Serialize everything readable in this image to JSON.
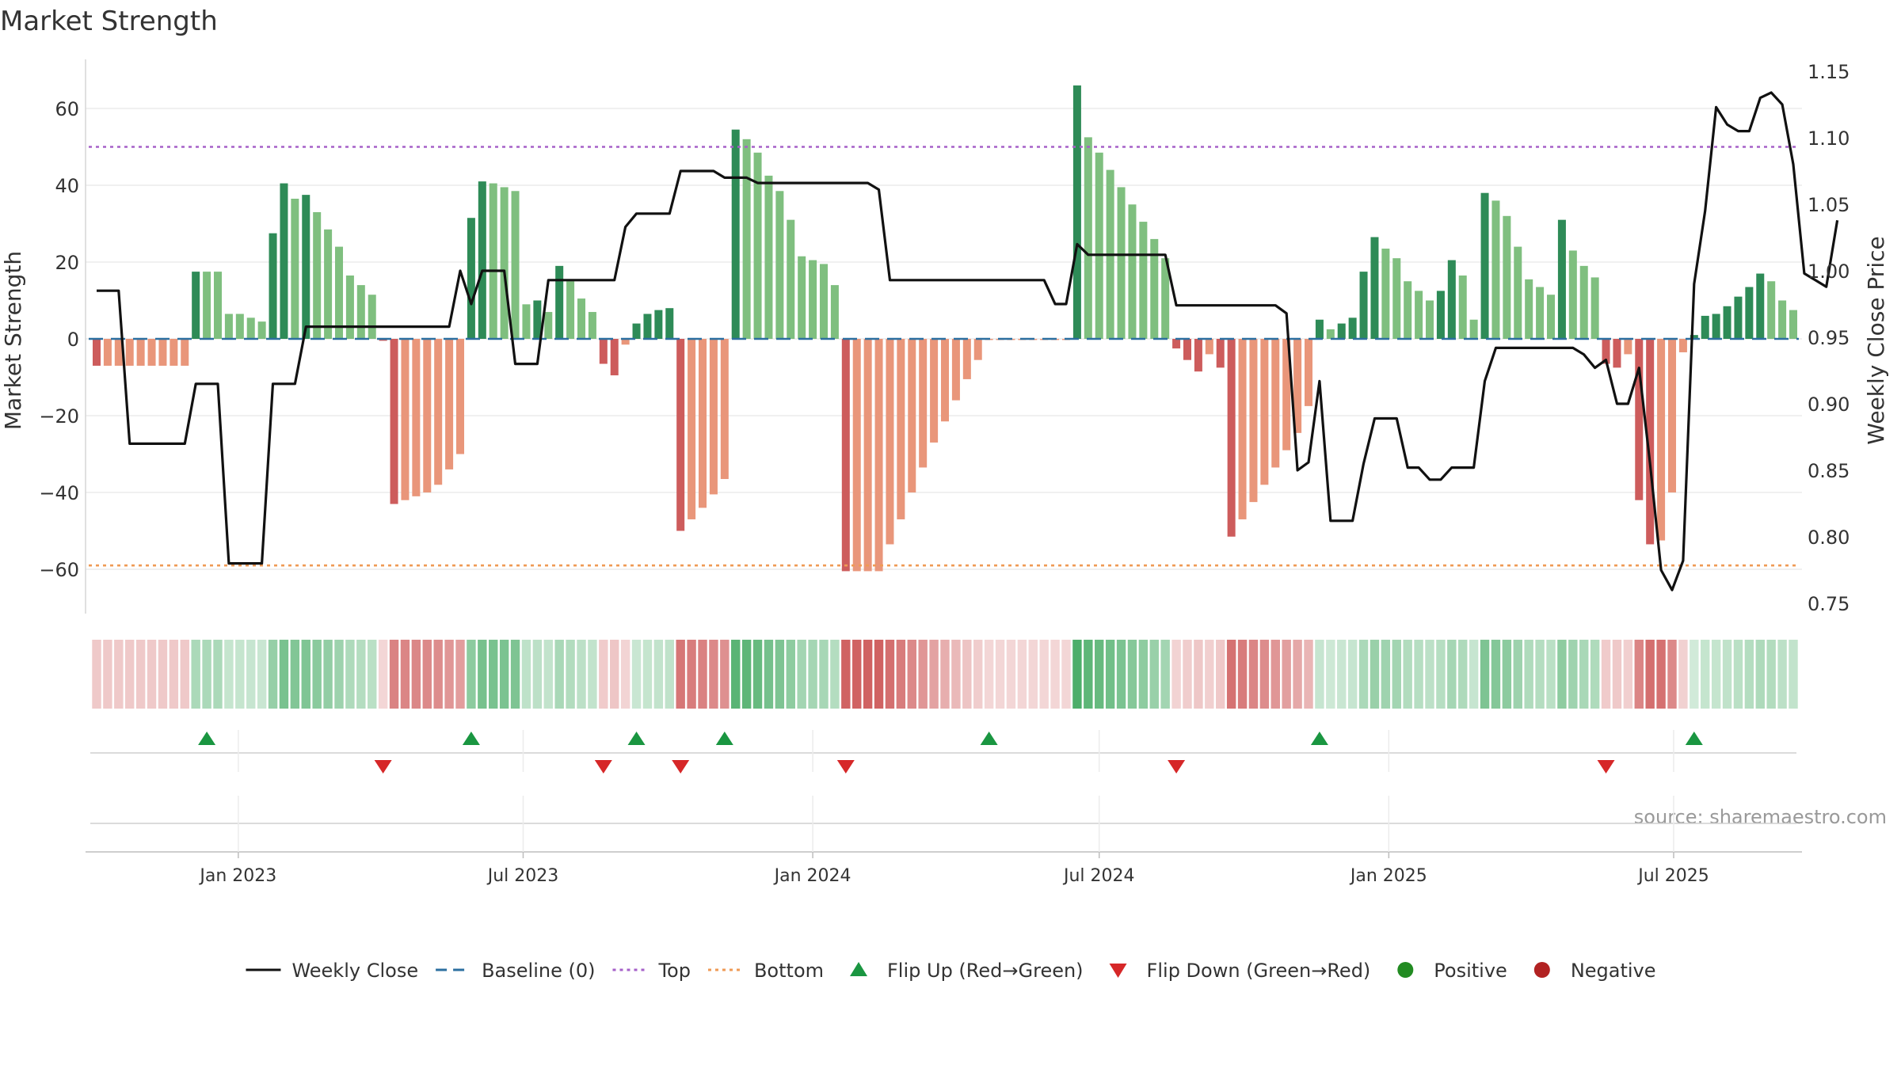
{
  "chart_data": {
    "type": "bar",
    "title": "Market Strength",
    "ylabel_left": "Market Strength",
    "ylabel_right": "Weekly Close Price",
    "source": "source: sharemaestro.com",
    "left_axis": {
      "ylim": [
        -72,
        72
      ],
      "ticks": [
        -60,
        -40,
        -20,
        0,
        20,
        40,
        60
      ],
      "tick_labels": [
        "−60",
        "−40",
        "−20",
        "0",
        "20",
        "40",
        "60"
      ]
    },
    "right_axis": {
      "ylim": [
        0.745,
        1.152
      ],
      "ticks": [
        0.75,
        0.8,
        0.85,
        0.9,
        0.95,
        1.0,
        1.05,
        1.1,
        1.15
      ],
      "tick_labels": [
        "0.75",
        "0.80",
        "0.85",
        "0.90",
        "0.95",
        "1.00",
        "1.05",
        "1.10",
        "1.15"
      ]
    },
    "reference_lines": [
      {
        "name": "Baseline (0)",
        "value": 0,
        "color": "#2c6fa0",
        "style": "dashed"
      },
      {
        "name": "Top",
        "value": 50,
        "color": "#a660c9",
        "style": "dotted"
      },
      {
        "name": "Bottom",
        "value": -59,
        "color": "#ef9a55",
        "style": "dotted"
      }
    ],
    "x_axis": {
      "start": "2022-10-03",
      "end": "2025-09-15",
      "tick_dates": [
        "2023-01-01",
        "2023-07-01",
        "2024-01-01",
        "2024-07-01",
        "2025-01-01",
        "2025-07-01"
      ],
      "tick_labels": [
        "Jan 2023",
        "Jul 2023",
        "Jan 2024",
        "Jul 2024",
        "Jan 2025",
        "Jul 2025"
      ]
    },
    "colors": {
      "pos_strong": "#2e8b57",
      "pos_light": "#7fbf7f",
      "neg_strong": "#cd5c5c",
      "neg_light": "#e9967a",
      "close_line": "#111111",
      "up_marker": "#1a9641",
      "down_marker": "#d62728",
      "positive_legend": "#228b22",
      "negative_legend": "#b22222"
    },
    "weeks": [
      {
        "d": "2022-10-03",
        "v": -7,
        "c": 0.985
      },
      {
        "d": "2022-10-10",
        "v": -7,
        "c": 0.985
      },
      {
        "d": "2022-10-17",
        "v": -7,
        "c": 0.985
      },
      {
        "d": "2022-10-24",
        "v": -7,
        "c": 0.87
      },
      {
        "d": "2022-10-31",
        "v": -7,
        "c": 0.87
      },
      {
        "d": "2022-11-07",
        "v": -7,
        "c": 0.87
      },
      {
        "d": "2022-11-14",
        "v": -7,
        "c": 0.87
      },
      {
        "d": "2022-11-21",
        "v": -7,
        "c": 0.87
      },
      {
        "d": "2022-11-28",
        "v": -7,
        "c": 0.87
      },
      {
        "d": "2022-12-05",
        "v": 17.5,
        "c": 0.915
      },
      {
        "d": "2022-12-12",
        "v": 17.5,
        "c": 0.915
      },
      {
        "d": "2022-12-19",
        "v": 17.5,
        "c": 0.915
      },
      {
        "d": "2022-12-26",
        "v": 6.5,
        "c": 0.78
      },
      {
        "d": "2023-01-02",
        "v": 6.5,
        "c": 0.78
      },
      {
        "d": "2023-01-09",
        "v": 5.5,
        "c": 0.78
      },
      {
        "d": "2023-01-16",
        "v": 4.5,
        "c": 0.78
      },
      {
        "d": "2023-01-23",
        "v": 27.5,
        "c": 0.915
      },
      {
        "d": "2023-01-30",
        "v": 40.5,
        "c": 0.915
      },
      {
        "d": "2023-02-06",
        "v": 36.5,
        "c": 0.915
      },
      {
        "d": "2023-02-13",
        "v": 37.5,
        "c": 0.958
      },
      {
        "d": "2023-02-20",
        "v": 33,
        "c": 0.958
      },
      {
        "d": "2023-02-27",
        "v": 28.5,
        "c": 0.958
      },
      {
        "d": "2023-03-06",
        "v": 24,
        "c": 0.958
      },
      {
        "d": "2023-03-13",
        "v": 16.5,
        "c": 0.958
      },
      {
        "d": "2023-03-20",
        "v": 14,
        "c": 0.958
      },
      {
        "d": "2023-03-27",
        "v": 11.5,
        "c": 0.958
      },
      {
        "d": "2023-04-03",
        "v": -0.5,
        "c": 0.958
      },
      {
        "d": "2023-04-10",
        "v": -43,
        "c": 0.958
      },
      {
        "d": "2023-04-17",
        "v": -42,
        "c": 0.958
      },
      {
        "d": "2023-04-24",
        "v": -41,
        "c": 0.958
      },
      {
        "d": "2023-05-01",
        "v": -40,
        "c": 0.958
      },
      {
        "d": "2023-05-08",
        "v": -38,
        "c": 0.958
      },
      {
        "d": "2023-05-15",
        "v": -34,
        "c": 0.958
      },
      {
        "d": "2023-05-22",
        "v": -30,
        "c": 1.0
      },
      {
        "d": "2023-05-29",
        "v": 31.5,
        "c": 0.975
      },
      {
        "d": "2023-06-05",
        "v": 41,
        "c": 1.0
      },
      {
        "d": "2023-06-12",
        "v": 40.5,
        "c": 1.0
      },
      {
        "d": "2023-06-19",
        "v": 39.5,
        "c": 1.0
      },
      {
        "d": "2023-06-26",
        "v": 38.5,
        "c": 0.93
      },
      {
        "d": "2023-07-03",
        "v": 9,
        "c": 0.93
      },
      {
        "d": "2023-07-10",
        "v": 10,
        "c": 0.93
      },
      {
        "d": "2023-07-17",
        "v": 7,
        "c": 0.993
      },
      {
        "d": "2023-07-24",
        "v": 19,
        "c": 0.993
      },
      {
        "d": "2023-07-31",
        "v": 15,
        "c": 0.993
      },
      {
        "d": "2023-08-07",
        "v": 10.5,
        "c": 0.993
      },
      {
        "d": "2023-08-14",
        "v": 7,
        "c": 0.993
      },
      {
        "d": "2023-08-21",
        "v": -6.5,
        "c": 0.993
      },
      {
        "d": "2023-08-28",
        "v": -9.5,
        "c": 0.993
      },
      {
        "d": "2023-09-04",
        "v": -1.5,
        "c": 1.033
      },
      {
        "d": "2023-09-11",
        "v": 4,
        "c": 1.043
      },
      {
        "d": "2023-09-18",
        "v": 6.5,
        "c": 1.043
      },
      {
        "d": "2023-09-25",
        "v": 7.5,
        "c": 1.043
      },
      {
        "d": "2023-10-02",
        "v": 8,
        "c": 1.043
      },
      {
        "d": "2023-10-09",
        "v": -50,
        "c": 1.075
      },
      {
        "d": "2023-10-16",
        "v": -47,
        "c": 1.075
      },
      {
        "d": "2023-10-23",
        "v": -44,
        "c": 1.075
      },
      {
        "d": "2023-10-30",
        "v": -40.5,
        "c": 1.075
      },
      {
        "d": "2023-11-06",
        "v": -36.5,
        "c": 1.07
      },
      {
        "d": "2023-11-13",
        "v": 54.5,
        "c": 1.07
      },
      {
        "d": "2023-11-20",
        "v": 52,
        "c": 1.07
      },
      {
        "d": "2023-11-27",
        "v": 48.5,
        "c": 1.066
      },
      {
        "d": "2023-12-04",
        "v": 42.5,
        "c": 1.066
      },
      {
        "d": "2023-12-11",
        "v": 38.5,
        "c": 1.066
      },
      {
        "d": "2023-12-18",
        "v": 31,
        "c": 1.066
      },
      {
        "d": "2023-12-25",
        "v": 21.5,
        "c": 1.066
      },
      {
        "d": "2024-01-01",
        "v": 20.5,
        "c": 1.066
      },
      {
        "d": "2024-01-08",
        "v": 19.5,
        "c": 1.066
      },
      {
        "d": "2024-01-15",
        "v": 14,
        "c": 1.066
      },
      {
        "d": "2024-01-22",
        "v": -60.5,
        "c": 1.066
      },
      {
        "d": "2024-01-29",
        "v": -60.5,
        "c": 1.066
      },
      {
        "d": "2024-02-05",
        "v": -60.5,
        "c": 1.066
      },
      {
        "d": "2024-02-12",
        "v": -60.5,
        "c": 1.061
      },
      {
        "d": "2024-02-19",
        "v": -53.5,
        "c": 0.993
      },
      {
        "d": "2024-02-26",
        "v": -47,
        "c": 0.993
      },
      {
        "d": "2024-03-04",
        "v": -40,
        "c": 0.993
      },
      {
        "d": "2024-03-11",
        "v": -33.5,
        "c": 0.993
      },
      {
        "d": "2024-03-18",
        "v": -27,
        "c": 0.993
      },
      {
        "d": "2024-03-25",
        "v": -21.5,
        "c": 0.993
      },
      {
        "d": "2024-04-01",
        "v": -16,
        "c": 0.993
      },
      {
        "d": "2024-04-08",
        "v": -10.5,
        "c": 0.993
      },
      {
        "d": "2024-04-15",
        "v": -5.5,
        "c": 0.993
      },
      {
        "d": "2024-04-22",
        "v": -0.3,
        "c": 0.993
      },
      {
        "d": "2024-04-29",
        "v": -0.3,
        "c": 0.993
      },
      {
        "d": "2024-05-06",
        "v": -0.3,
        "c": 0.993
      },
      {
        "d": "2024-05-13",
        "v": -0.3,
        "c": 0.993
      },
      {
        "d": "2024-05-20",
        "v": -0.3,
        "c": 0.993
      },
      {
        "d": "2024-05-27",
        "v": -0.3,
        "c": 0.993
      },
      {
        "d": "2024-06-03",
        "v": -0.3,
        "c": 0.975
      },
      {
        "d": "2024-06-10",
        "v": -0.3,
        "c": 0.975
      },
      {
        "d": "2024-06-17",
        "v": 66,
        "c": 1.02
      },
      {
        "d": "2024-06-24",
        "v": 52.5,
        "c": 1.012
      },
      {
        "d": "2024-07-01",
        "v": 48.5,
        "c": 1.012
      },
      {
        "d": "2024-07-08",
        "v": 44,
        "c": 1.012
      },
      {
        "d": "2024-07-15",
        "v": 39.5,
        "c": 1.012
      },
      {
        "d": "2024-07-22",
        "v": 35,
        "c": 1.012
      },
      {
        "d": "2024-07-29",
        "v": 30.5,
        "c": 1.012
      },
      {
        "d": "2024-08-05",
        "v": 26,
        "c": 1.012
      },
      {
        "d": "2024-08-12",
        "v": 21,
        "c": 1.012
      },
      {
        "d": "2024-08-19",
        "v": -2.5,
        "c": 0.974
      },
      {
        "d": "2024-08-26",
        "v": -5.5,
        "c": 0.974
      },
      {
        "d": "2024-09-02",
        "v": -8.5,
        "c": 0.974
      },
      {
        "d": "2024-09-09",
        "v": -4,
        "c": 0.974
      },
      {
        "d": "2024-09-16",
        "v": -7.5,
        "c": 0.974
      },
      {
        "d": "2024-09-23",
        "v": -51.5,
        "c": 0.974
      },
      {
        "d": "2024-09-30",
        "v": -47,
        "c": 0.974
      },
      {
        "d": "2024-10-07",
        "v": -42.5,
        "c": 0.974
      },
      {
        "d": "2024-10-14",
        "v": -38,
        "c": 0.974
      },
      {
        "d": "2024-10-21",
        "v": -33.5,
        "c": 0.974
      },
      {
        "d": "2024-10-28",
        "v": -29,
        "c": 0.968
      },
      {
        "d": "2024-11-04",
        "v": -24.5,
        "c": 0.85
      },
      {
        "d": "2024-11-11",
        "v": -17.5,
        "c": 0.856
      },
      {
        "d": "2024-11-18",
        "v": 5,
        "c": 0.917
      },
      {
        "d": "2024-11-25",
        "v": 2.5,
        "c": 0.812
      },
      {
        "d": "2024-12-02",
        "v": 4,
        "c": 0.812
      },
      {
        "d": "2024-12-09",
        "v": 5.5,
        "c": 0.812
      },
      {
        "d": "2024-12-16",
        "v": 17.5,
        "c": 0.855
      },
      {
        "d": "2024-12-23",
        "v": 26.5,
        "c": 0.889
      },
      {
        "d": "2024-12-30",
        "v": 23.5,
        "c": 0.889
      },
      {
        "d": "2025-01-06",
        "v": 21,
        "c": 0.889
      },
      {
        "d": "2025-01-13",
        "v": 15,
        "c": 0.852
      },
      {
        "d": "2025-01-20",
        "v": 12.5,
        "c": 0.852
      },
      {
        "d": "2025-01-27",
        "v": 10,
        "c": 0.843
      },
      {
        "d": "2025-02-03",
        "v": 12.5,
        "c": 0.843
      },
      {
        "d": "2025-02-10",
        "v": 20.5,
        "c": 0.852
      },
      {
        "d": "2025-02-17",
        "v": 16.5,
        "c": 0.852
      },
      {
        "d": "2025-02-24",
        "v": 5,
        "c": 0.852
      },
      {
        "d": "2025-03-03",
        "v": 38,
        "c": 0.917
      },
      {
        "d": "2025-03-10",
        "v": 36,
        "c": 0.942
      },
      {
        "d": "2025-03-17",
        "v": 32,
        "c": 0.942
      },
      {
        "d": "2025-03-24",
        "v": 24,
        "c": 0.942
      },
      {
        "d": "2025-03-31",
        "v": 15.5,
        "c": 0.942
      },
      {
        "d": "2025-04-07",
        "v": 13.5,
        "c": 0.942
      },
      {
        "d": "2025-04-14",
        "v": 11.5,
        "c": 0.942
      },
      {
        "d": "2025-04-21",
        "v": 31,
        "c": 0.942
      },
      {
        "d": "2025-04-28",
        "v": 23,
        "c": 0.942
      },
      {
        "d": "2025-05-05",
        "v": 19,
        "c": 0.937
      },
      {
        "d": "2025-05-12",
        "v": 16,
        "c": 0.927
      },
      {
        "d": "2025-05-19",
        "v": -6.5,
        "c": 0.933
      },
      {
        "d": "2025-05-26",
        "v": -7.5,
        "c": 0.9
      },
      {
        "d": "2025-06-02",
        "v": -4,
        "c": 0.9
      },
      {
        "d": "2025-06-09",
        "v": -42,
        "c": 0.927
      },
      {
        "d": "2025-06-16",
        "v": -53.5,
        "c": 0.855
      },
      {
        "d": "2025-06-23",
        "v": -52.5,
        "c": 0.775
      },
      {
        "d": "2025-06-30",
        "v": -40,
        "c": 0.76
      },
      {
        "d": "2025-07-07",
        "v": -3.5,
        "c": 0.782
      },
      {
        "d": "2025-07-14",
        "v": 1,
        "c": 0.99
      },
      {
        "d": "2025-07-21",
        "v": 6,
        "c": 1.045
      },
      {
        "d": "2025-07-28",
        "v": 6.5,
        "c": 1.123
      },
      {
        "d": "2025-08-04",
        "v": 8.5,
        "c": 1.11
      },
      {
        "d": "2025-08-11",
        "v": 11,
        "c": 1.105
      },
      {
        "d": "2025-08-18",
        "v": 13.5,
        "c": 1.105
      },
      {
        "d": "2025-08-25",
        "v": 17,
        "c": 1.13
      },
      {
        "d": "2025-09-01",
        "v": 15,
        "c": 1.134
      },
      {
        "d": "2025-09-08",
        "v": 10,
        "c": 1.125
      },
      {
        "d": "2025-09-15",
        "v": 7.5,
        "c": 1.08
      }
    ],
    "extra_close": [
      {
        "d": "2025-09-22",
        "c": 0.998
      },
      {
        "d": "2025-09-29",
        "c": 0.993
      },
      {
        "d": "2025-10-06",
        "c": 0.988
      },
      {
        "d": "2025-10-13",
        "c": 1.038
      }
    ],
    "markers": {
      "flip_up": [
        "2022-12-12",
        "2023-05-29",
        "2023-09-11",
        "2023-11-06",
        "2024-04-22",
        "2024-11-18",
        "2025-07-14"
      ],
      "flip_down": [
        "2023-04-03",
        "2023-08-21",
        "2023-10-09",
        "2024-01-22",
        "2024-08-19",
        "2025-05-19"
      ]
    },
    "legend": [
      {
        "label": "Weekly Close",
        "kind": "line-solid",
        "color": "#111111"
      },
      {
        "label": "Baseline (0)",
        "kind": "line-dashed",
        "color": "#2c6fa0"
      },
      {
        "label": "Top",
        "kind": "line-dotted",
        "color": "#a660c9"
      },
      {
        "label": "Bottom",
        "kind": "line-dotted",
        "color": "#ef9a55"
      },
      {
        "label": "Flip Up (Red→Green)",
        "kind": "tri-up",
        "color": "#1a9641"
      },
      {
        "label": "Flip Down (Green→Red)",
        "kind": "tri-down",
        "color": "#d62728"
      },
      {
        "label": "Positive",
        "kind": "dot",
        "color": "#228b22"
      },
      {
        "label": "Negative",
        "kind": "dot",
        "color": "#b22222"
      }
    ]
  }
}
